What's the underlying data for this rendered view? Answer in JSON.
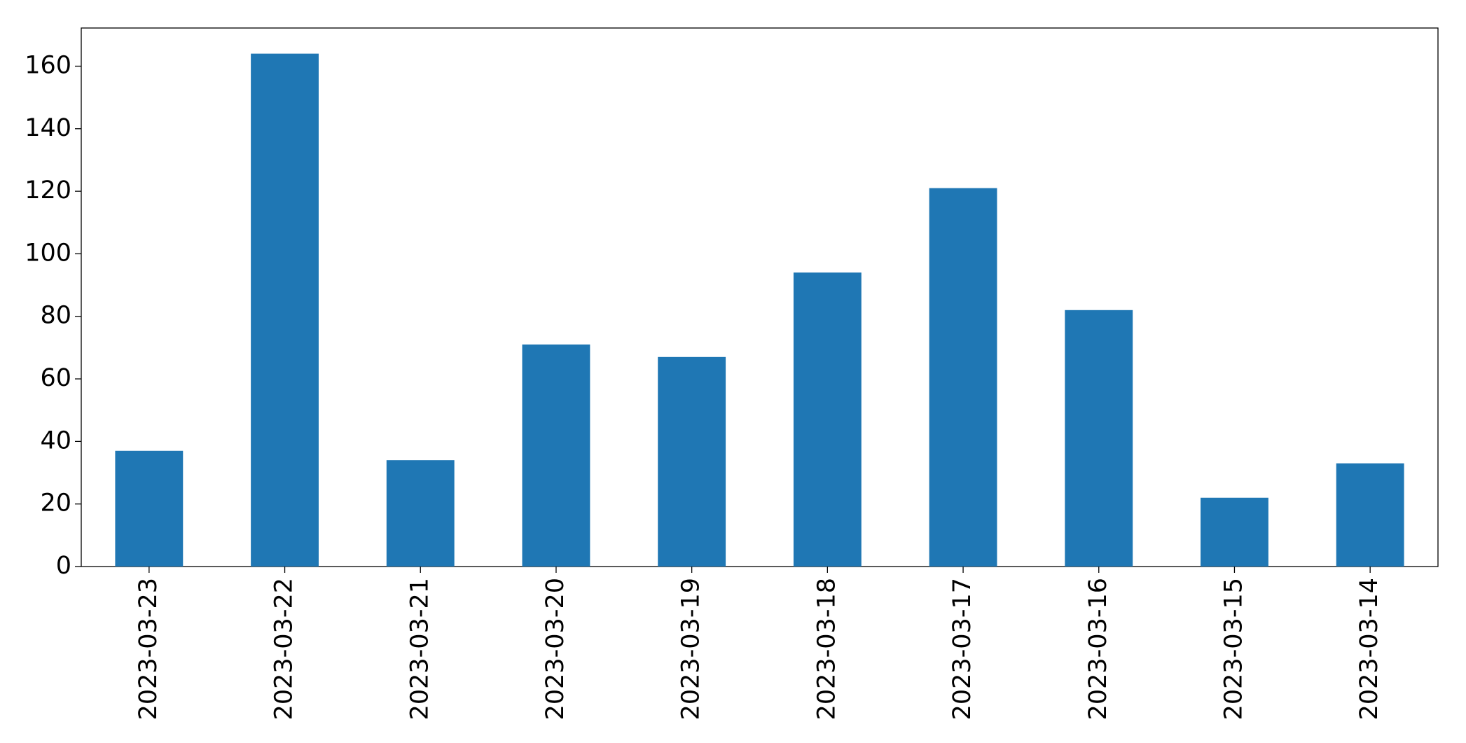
{
  "chart_data": {
    "type": "bar",
    "categories": [
      "2023-03-23",
      "2023-03-22",
      "2023-03-21",
      "2023-03-20",
      "2023-03-19",
      "2023-03-18",
      "2023-03-17",
      "2023-03-16",
      "2023-03-15",
      "2023-03-14"
    ],
    "values": [
      37,
      164,
      34,
      71,
      67,
      94,
      121,
      82,
      22,
      33
    ],
    "color": "#1f77b4",
    "ylim": [
      0,
      172.2
    ],
    "yticks": [
      0,
      20,
      40,
      60,
      80,
      100,
      120,
      140,
      160
    ],
    "grid": false
  }
}
